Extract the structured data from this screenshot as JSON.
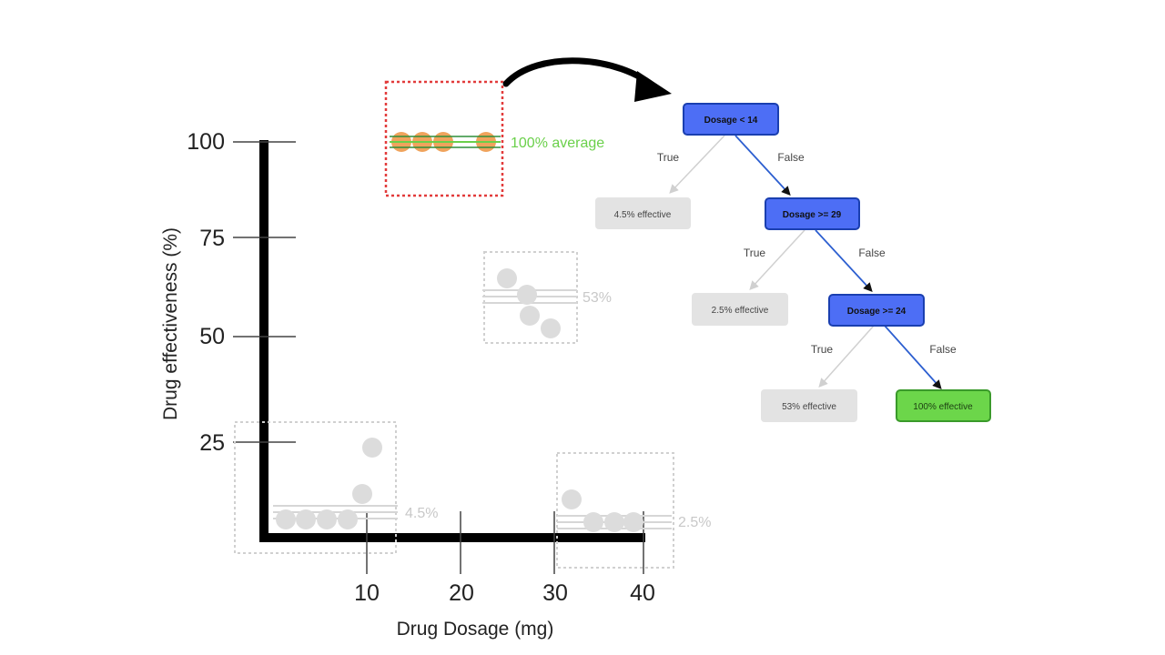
{
  "plot": {
    "xlabel": "Drug Dosage (mg)",
    "ylabel": "Drug effectiveness (%)",
    "x_ticks": [
      "10",
      "20",
      "30",
      "40"
    ],
    "y_ticks": [
      "100",
      "75",
      "50",
      "25"
    ]
  },
  "groups": {
    "highlight_label": "100% average",
    "mid_label": "53%",
    "left_label": "4.5%",
    "right_label": "2.5%"
  },
  "tree": {
    "root": "Dosage < 14",
    "node2": "Dosage >= 29",
    "node3": "Dosage >= 24",
    "leaf1": "4.5% effective",
    "leaf2": "2.5% effective",
    "leaf3": "53% effective",
    "leaf4": "100% effective",
    "true_label": "True",
    "false_label": "False"
  },
  "colors": {
    "node_fill": "#4d6ef5",
    "node_stroke": "#1a3fb0",
    "leaf_grey": "#e3e3e3",
    "leaf_green": "#6cd64a",
    "leaf_green_stroke": "#3a9a2a",
    "orange_point": "#f0a35c",
    "grey_point": "#dcdcdc",
    "highlight_line": "#6ad04a",
    "dotted_red": "#e23b3b",
    "path_blue": "#2d5fd0"
  }
}
